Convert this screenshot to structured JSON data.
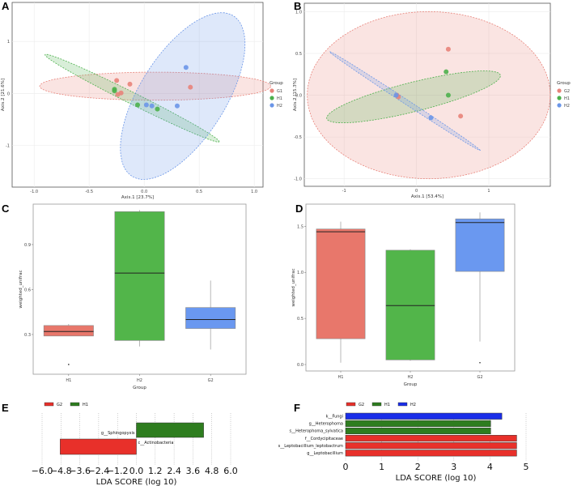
{
  "chart_data": [
    {
      "panel": "A",
      "type": "scatter",
      "xlabel": "Axis.1   [23.7%]",
      "ylabel": "Axis.2   [21.6%]",
      "xlim": [
        -1.2,
        1.08
      ],
      "ylim": [
        -1.8,
        1.75
      ],
      "xticks": [
        "-1.0",
        "-0.5",
        "0.0",
        "0.5",
        "1.0"
      ],
      "xtick_values": [
        -1,
        -0.5,
        0,
        0.5,
        1
      ],
      "yticks": [
        "1",
        "0",
        "-1"
      ],
      "ytick_values": [
        1,
        0,
        -1
      ],
      "legend_title": "Group",
      "legend_position": "right",
      "series": [
        {
          "name": "G1",
          "color": "#e8837a",
          "points": [
            [
              -0.25,
              0.25
            ],
            [
              -0.13,
              0.18
            ],
            [
              -0.24,
              -0.02
            ],
            [
              -0.21,
              0.01
            ],
            [
              0.42,
              0.12
            ]
          ],
          "ellipse": {
            "center": [
              0.1,
              0.14
            ],
            "u": [
              1.05,
              0
            ],
            "v": [
              0,
              0.27
            ]
          }
        },
        {
          "name": "H1",
          "color": "#4cb04c",
          "points": [
            [
              -0.27,
              0.08
            ],
            [
              -0.27,
              0.05
            ],
            [
              -0.06,
              -0.22
            ],
            [
              0.12,
              -0.3
            ]
          ],
          "ellipse": {
            "center": [
              -0.11,
              -0.09
            ],
            "u": [
              0.79,
              -0.84
            ],
            "v": [
              0.05,
              0.07
            ]
          }
        },
        {
          "name": "H2",
          "color": "#6b96e8",
          "points": [
            [
              0.38,
              0.5
            ],
            [
              0.02,
              -0.22
            ],
            [
              0.07,
              -0.24
            ],
            [
              0.3,
              -0.24
            ]
          ],
          "ellipse": {
            "center": [
              0.35,
              -0.05
            ],
            "u": [
              0.38,
              1.6
            ],
            "v": [
              -0.42,
              0.1
            ]
          }
        }
      ]
    },
    {
      "panel": "B",
      "type": "scatter",
      "xlabel": "Axis.1   [53.4%]",
      "ylabel": "Axis.2   [15.3%]",
      "xlim": [
        -1.55,
        1.85
      ],
      "ylim": [
        -1.09,
        1.1
      ],
      "xticks": [
        "-1",
        "0",
        "1"
      ],
      "xtick_values": [
        -1,
        0,
        1
      ],
      "yticks": [
        "1.0",
        "0.5",
        "0.0",
        "-0.5",
        "-1.0"
      ],
      "ytick_values": [
        1,
        0.5,
        0,
        -0.5,
        -1
      ],
      "legend_title": "Group",
      "legend_position": "right",
      "series": [
        {
          "name": "G2",
          "color": "#e8837a",
          "points": [
            [
              0.44,
              0.55
            ],
            [
              0.61,
              -0.25
            ],
            [
              -0.27,
              0.0
            ],
            [
              -0.25,
              -0.02
            ]
          ],
          "ellipse": {
            "center": [
              0.17,
              0.0
            ],
            "u": [
              1.68,
              0
            ],
            "v": [
              0,
              1.0
            ]
          }
        },
        {
          "name": "H1",
          "color": "#4cb04c",
          "points": [
            [
              0.41,
              0.28
            ],
            [
              0.44,
              0.0
            ]
          ],
          "ellipse": {
            "center": [
              -0.04,
              -0.02
            ],
            "u": [
              1.2,
              0.26
            ],
            "v": [
              -0.05,
              0.17
            ]
          }
        },
        {
          "name": "H2",
          "color": "#6b96e8",
          "points": [
            [
              0.2,
              -0.27
            ],
            [
              -0.28,
              0.0
            ]
          ],
          "ellipse": {
            "center": [
              -0.16,
              -0.07
            ],
            "u": [
              1.04,
              -0.59
            ],
            "v": [
              0.015,
              0.025
            ]
          }
        }
      ]
    },
    {
      "panel": "C",
      "type": "box",
      "xlabel": "Group",
      "ylabel": "weighted_unifrac",
      "ylim": [
        0.035,
        1.17
      ],
      "yticks": [
        "0.9",
        "0.6",
        "0.3"
      ],
      "ytick_values": [
        0.9,
        0.6,
        0.3
      ],
      "categories": [
        "H1",
        "H2",
        "G2"
      ],
      "boxes": [
        {
          "name": "H1",
          "color": "#e8776b",
          "whisker_low": 0.29,
          "q1": 0.29,
          "median": 0.32,
          "q3": 0.36,
          "whisker_high": 0.37,
          "outliers": [
            0.1
          ]
        },
        {
          "name": "H2",
          "color": "#52b54a",
          "whisker_low": 0.22,
          "q1": 0.26,
          "median": 0.71,
          "q3": 1.12,
          "whisker_high": 1.13,
          "outliers": []
        },
        {
          "name": "G2",
          "color": "#6a98f0",
          "whisker_low": 0.2,
          "q1": 0.34,
          "median": 0.4,
          "q3": 0.48,
          "whisker_high": 0.66,
          "outliers": []
        }
      ]
    },
    {
      "panel": "D",
      "type": "box",
      "xlabel": "Group",
      "ylabel": "weighted_unifrac",
      "ylim": [
        -0.07,
        1.74
      ],
      "yticks": [
        "1.5",
        "1.0",
        "0.5",
        "0.0"
      ],
      "ytick_values": [
        1.5,
        1,
        0.5,
        0
      ],
      "categories": [
        "H1",
        "H2",
        "G2"
      ],
      "boxes": [
        {
          "name": "H1",
          "color": "#e8776b",
          "whisker_low": 0.02,
          "q1": 0.28,
          "median": 1.44,
          "q3": 1.47,
          "whisker_high": 1.55,
          "outliers": []
        },
        {
          "name": "H2",
          "color": "#52b54a",
          "whisker_low": 0.04,
          "q1": 0.05,
          "median": 0.64,
          "q3": 1.24,
          "whisker_high": 1.25,
          "outliers": []
        },
        {
          "name": "G2",
          "color": "#6a98f0",
          "whisker_low": 0.25,
          "q1": 1.01,
          "median": 1.54,
          "q3": 1.58,
          "whisker_high": 1.65,
          "outliers": [
            0.02
          ]
        }
      ]
    },
    {
      "panel": "E",
      "type": "bar",
      "xlabel": "LDA SCORE (log 10)",
      "xlim": [
        -6,
        6
      ],
      "xticks": [
        "−6.0",
        "−4.8",
        "−3.6",
        "−2.4",
        "−1.2",
        "0.0",
        "1.2",
        "2.4",
        "3.6",
        "4.8",
        "6.0"
      ],
      "xtick_values": [
        -6,
        -4.8,
        -3.6,
        -2.4,
        -1.2,
        0,
        1.2,
        2.4,
        3.6,
        4.8,
        6
      ],
      "legend": [
        {
          "name": "G2",
          "color": "#e8302a"
        },
        {
          "name": "H1",
          "color": "#2e7d1f"
        }
      ],
      "bars": [
        {
          "label": "g__Sphingopyxis",
          "group": "H1",
          "value": 4.28
        },
        {
          "label": "c__Actinobacteria",
          "group": "G2",
          "value": -4.85
        }
      ]
    },
    {
      "panel": "F",
      "type": "bar",
      "xlabel": "LDA SCORE (log 10)",
      "xlim": [
        0,
        5
      ],
      "xticks": [
        "0",
        "1",
        "2",
        "3",
        "4",
        "5"
      ],
      "xtick_values": [
        0,
        1,
        2,
        3,
        4,
        5
      ],
      "legend": [
        {
          "name": "G2",
          "color": "#e8302a"
        },
        {
          "name": "H1",
          "color": "#2e7d1f"
        },
        {
          "name": "H2",
          "color": "#1a2ee8"
        }
      ],
      "bars": [
        {
          "label": "k__Fungi",
          "group": "H2",
          "value": 4.33
        },
        {
          "label": "g__Heterophoma",
          "group": "H1",
          "value": 4.02
        },
        {
          "label": "s__Heterophoma_sylvatica",
          "group": "H1",
          "value": 4.02
        },
        {
          "label": "f__Cordycipitaceae",
          "group": "G2",
          "value": 4.74
        },
        {
          "label": "s__Leptobacillium_leptobactrum",
          "group": "G2",
          "value": 4.74
        },
        {
          "label": "g__Leptobacillium",
          "group": "G2",
          "value": 4.74
        }
      ]
    }
  ]
}
